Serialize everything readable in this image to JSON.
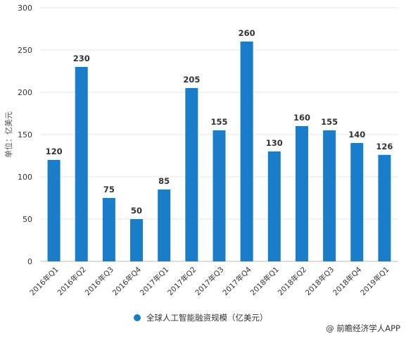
{
  "chart_data": {
    "type": "bar",
    "ylabel": "单位：亿美元",
    "ylim": [
      0,
      300
    ],
    "yticks": [
      0,
      50,
      100,
      150,
      200,
      250,
      300
    ],
    "categories": [
      "2016年Q1",
      "2016年Q2",
      "2016年Q3",
      "2016年Q4",
      "2017年Q1",
      "2017年Q2",
      "2017年Q3",
      "2017年Q4",
      "2018年Q1",
      "2018年Q2",
      "2018年Q3",
      "2018年Q4",
      "2019年Q1"
    ],
    "series": [
      {
        "name": "全球人工智能融资规模（亿美元）",
        "values": [
          120,
          230,
          75,
          50,
          85,
          205,
          155,
          260,
          130,
          160,
          155,
          140,
          126
        ],
        "color": "#1a7dc9"
      }
    ],
    "legend_position": "bottom",
    "grid": true
  },
  "source": "@ 前瞻经济学人APP"
}
